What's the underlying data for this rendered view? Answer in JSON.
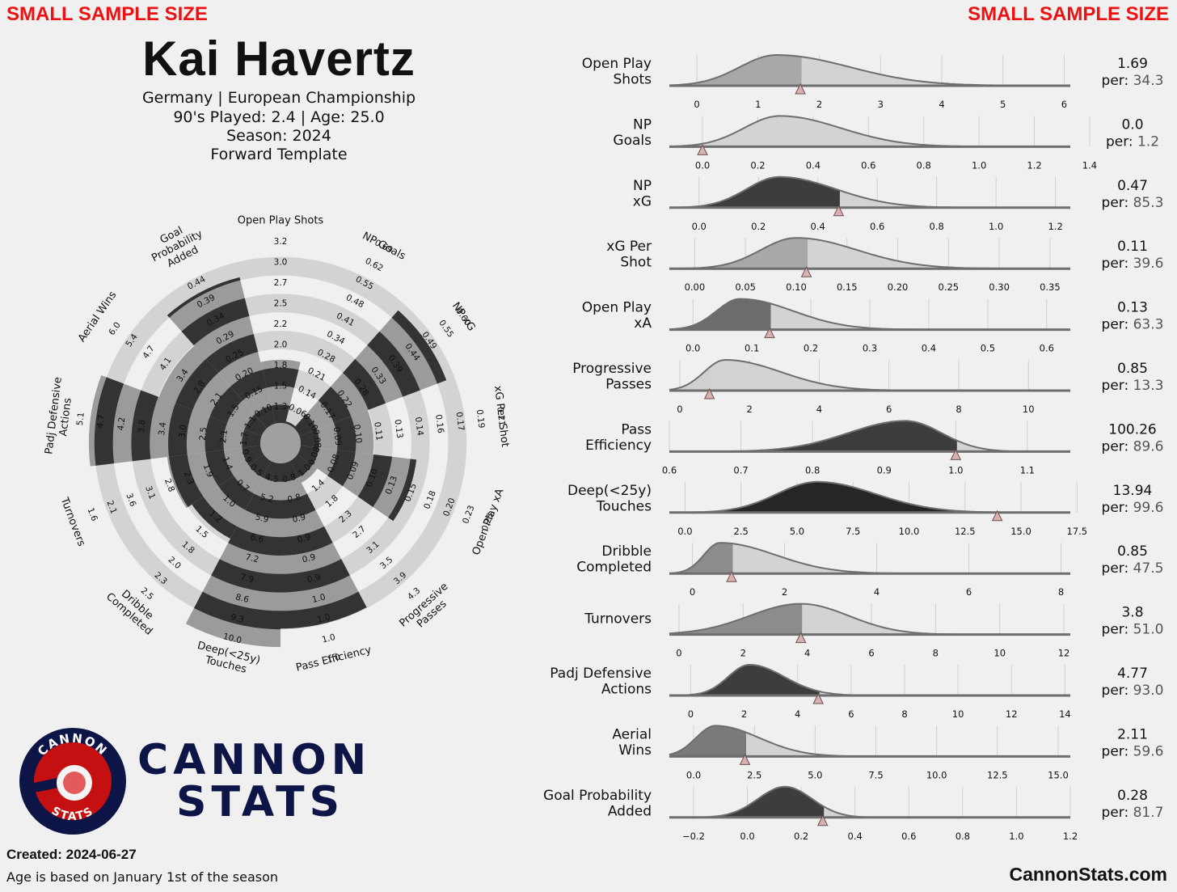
{
  "header": {
    "warning_left": "SMALL SAMPLE SIZE",
    "warning_right": "SMALL SAMPLE SIZE",
    "player_name": "Kai Havertz",
    "line1": "Germany | European Championship",
    "line2": "90's Played: 2.4 | Age: 25.0",
    "line3": "Season: 2024",
    "line4": "Forward Template"
  },
  "footer": {
    "brand_line1": "CANNON",
    "brand_line2": "STATS",
    "logo_top": "CANNON",
    "logo_bottom": "STATS",
    "created": "Created: 2024-06-27",
    "age_note": "Age is based on January 1st of the season",
    "website": "CannonStats.com"
  },
  "colors": {
    "background": "#f0f0f0",
    "warning": "#ee1111",
    "brand": "#0d1446",
    "ring": "#d3d3d3",
    "radar_dark": "#333333",
    "radar_light": "#9b9b9b",
    "marker": "#d9b0b0"
  },
  "chart_data": [
    {
      "type": "radar",
      "title": "",
      "categories": [
        "Open Play Shots",
        "NP Goals",
        "NP xG",
        "xG Per Shot",
        "Open Play xA",
        "Progressive Passes",
        "Pass Efficiency",
        "Deep(<25y) Touches",
        "Dribble Completed",
        "Turnovers",
        "Padj Defensive Actions",
        "Aerial Wins",
        "Goal Probability Added"
      ],
      "axis_labels": [
        "Open Play Shots",
        "NP Goals",
        "NP xG",
        "xG Per Shot",
        "Open Play xA",
        "Progressive\nPasses",
        "Pass Efficiency",
        "Deep(<25y)\nTouches",
        "Dribble\nCompleted",
        "Turnovers",
        "Padj Defensive\nActions",
        "Aerial Wins",
        "Goal\nProbability\nAdded"
      ],
      "percentiles": [
        34.3,
        1.2,
        85.3,
        39.6,
        63.3,
        13.3,
        89.6,
        99.6,
        47.5,
        51.0,
        93.0,
        59.6,
        81.7
      ],
      "range": [
        0,
        100
      ],
      "tick_labels": [
        [
          "1.3",
          "1.5",
          "1.8",
          "2.0",
          "2.2",
          "2.5",
          "2.7",
          "3.0",
          "3.2"
        ],
        [
          "0.06",
          "0.14",
          "0.21",
          "0.28",
          "0.34",
          "0.41",
          "0.48",
          "0.55",
          "0.62",
          "0.69"
        ],
        [
          "0.10",
          "0.17",
          "0.22",
          "0.28",
          "0.33",
          "0.39",
          "0.44",
          "0.49",
          "0.55",
          "0.60"
        ],
        [
          "0.08",
          "0.09",
          "0.10",
          "0.11",
          "0.13",
          "0.14",
          "0.16",
          "0.17",
          "0.19",
          "0.21"
        ],
        [
          "0.08",
          "0.08",
          "0.09",
          "0.10",
          "0.13",
          "0.15",
          "0.18",
          "0.20",
          "0.23",
          "0.25"
        ],
        [
          "1.0",
          "1.4",
          "1.8",
          "2.3",
          "2.7",
          "3.1",
          "3.5",
          "3.9",
          "4.3"
        ],
        [
          "0.8",
          "0.8",
          "0.9",
          "0.9",
          "0.9",
          "0.9",
          "1.0",
          "1.0",
          "1.0",
          "1.0"
        ],
        [
          "4.5",
          "5.2",
          "5.9",
          "6.6",
          "7.2",
          "7.9",
          "8.6",
          "9.3",
          "10.0"
        ],
        [
          "0.5",
          "0.7",
          "1.0",
          "1.2",
          "1.5",
          "1.8",
          "2.0",
          "2.3",
          "2.5"
        ],
        [
          "0.9",
          "1.4",
          "1.9",
          "2.3",
          "2.8",
          "3.1",
          "3.6",
          "2.1",
          "1.6"
        ],
        [
          "1.7",
          "2.1",
          "2.5",
          "3.0",
          "3.4",
          "3.8",
          "4.2",
          "4.7",
          "5.1"
        ],
        [
          "1.1",
          "1.5",
          "2.1",
          "2.8",
          "3.4",
          "4.1",
          "4.7",
          "5.4",
          "6.0"
        ],
        [
          "0.10",
          "0.15",
          "0.20",
          "0.25",
          "0.29",
          "0.34",
          "0.39",
          "0.44"
        ]
      ]
    },
    {
      "type": "area",
      "title": "",
      "grid": true,
      "rows": [
        {
          "label": "Open Play\nShots",
          "value": "1.69",
          "percentile": "34.3",
          "x": 1.69,
          "xlim": [
            -0.45,
            6.1
          ],
          "ticks": [
            0,
            1,
            2,
            3,
            4,
            5,
            6
          ],
          "tick_labels": [
            "0",
            "1",
            "2",
            "3",
            "4",
            "5",
            "6"
          ],
          "peak": 1.3,
          "sd_left": 0.6,
          "sd_right": 1.2,
          "density_height": 0.95,
          "shade": "#a8a8a8"
        },
        {
          "label": "NP\nGoals",
          "value": "0.0",
          "percentile": "1.2",
          "x": 0.0,
          "xlim": [
            -0.12,
            1.33
          ],
          "ticks": [
            0.0,
            0.2,
            0.4,
            0.6,
            0.8,
            1.0,
            1.2,
            1.4
          ],
          "tick_labels": [
            "0.0",
            "0.2",
            "0.4",
            "0.6",
            "0.8",
            "1.0",
            "1.2",
            "1.4"
          ],
          "peak": 0.28,
          "sd_left": 0.13,
          "sd_right": 0.22,
          "density_height": 0.95,
          "shade": "#d0d0d0"
        },
        {
          "label": "NP\nxG",
          "value": "0.47",
          "percentile": "85.3",
          "x": 0.47,
          "xlim": [
            -0.1,
            1.25
          ],
          "ticks": [
            0.0,
            0.2,
            0.4,
            0.6,
            0.8,
            1.0,
            1.2
          ],
          "tick_labels": [
            "0.0",
            "0.2",
            "0.4",
            "0.6",
            "0.8",
            "1.0",
            "1.2"
          ],
          "peak": 0.27,
          "sd_left": 0.11,
          "sd_right": 0.19,
          "density_height": 0.95,
          "shade": "#3d3d3d"
        },
        {
          "label": "xG Per\nShot",
          "value": "0.11",
          "percentile": "39.6",
          "x": 0.11,
          "xlim": [
            -0.025,
            0.37
          ],
          "ticks": [
            0.0,
            0.05,
            0.1,
            0.15,
            0.2,
            0.25,
            0.3,
            0.35
          ],
          "tick_labels": [
            "0.00",
            "0.05",
            "0.10",
            "0.15",
            "0.20",
            "0.25",
            "0.30",
            "0.35"
          ],
          "peak": 0.1,
          "sd_left": 0.035,
          "sd_right": 0.06,
          "density_height": 0.95,
          "shade": "#a8a8a8"
        },
        {
          "label": "Open Play\nxA",
          "value": "0.13",
          "percentile": "63.3",
          "x": 0.13,
          "xlim": [
            -0.04,
            0.64
          ],
          "ticks": [
            0.0,
            0.1,
            0.2,
            0.3,
            0.4,
            0.5,
            0.6
          ],
          "tick_labels": [
            "0.0",
            "0.1",
            "0.2",
            "0.3",
            "0.4",
            "0.5",
            "0.6"
          ],
          "peak": 0.08,
          "sd_left": 0.04,
          "sd_right": 0.09,
          "density_height": 0.95,
          "shade": "#6c6c6c"
        },
        {
          "label": "Progressive\nPasses",
          "value": "0.85",
          "percentile": "13.3",
          "x": 0.85,
          "xlim": [
            -0.3,
            11.2
          ],
          "ticks": [
            0,
            2,
            4,
            6,
            8,
            10
          ],
          "tick_labels": [
            "0",
            "2",
            "4",
            "6",
            "8",
            "10"
          ],
          "peak": 1.3,
          "sd_left": 0.6,
          "sd_right": 1.6,
          "density_height": 0.95,
          "shade": "#d0d0d0"
        },
        {
          "label": "Pass\nEfficiency",
          "value": "100.26",
          "percentile": "89.6",
          "x": 1.0,
          "xlim": [
            0.6,
            1.16
          ],
          "ticks": [
            0.6,
            0.7,
            0.8,
            0.9,
            1.0,
            1.1
          ],
          "tick_labels": [
            "0.6",
            "0.7",
            "0.8",
            "0.9",
            "1.0",
            "1.1"
          ],
          "peak": 0.93,
          "sd_left": 0.08,
          "sd_right": 0.05,
          "density_height": 0.95,
          "shade": "#3d3d3d"
        },
        {
          "label": "Deep(<25y)\nTouches",
          "value": "13.94",
          "percentile": "99.6",
          "x": 13.94,
          "xlim": [
            -0.7,
            17.2
          ],
          "ticks": [
            0.0,
            2.5,
            5.0,
            7.5,
            10.0,
            12.5,
            15.0,
            17.5
          ],
          "tick_labels": [
            "0.0",
            "2.5",
            "5.0",
            "7.5",
            "10.0",
            "12.5",
            "15.0",
            "17.5"
          ],
          "peak": 5.9,
          "sd_left": 1.8,
          "sd_right": 2.6,
          "density_height": 0.95,
          "shade": "#262626"
        },
        {
          "label": "Dribble\nCompleted",
          "value": "0.85",
          "percentile": "47.5",
          "x": 0.85,
          "xlim": [
            -0.5,
            8.2
          ],
          "ticks": [
            0,
            2,
            4,
            6,
            8
          ],
          "tick_labels": [
            "0",
            "2",
            "4",
            "6",
            "8"
          ],
          "peak": 0.6,
          "sd_left": 0.35,
          "sd_right": 1.2,
          "density_height": 0.95,
          "shade": "#8c8c8c"
        },
        {
          "label": "Turnovers",
          "value": "3.8",
          "percentile": "51.0",
          "x": 3.8,
          "xlim": [
            -0.3,
            12.2
          ],
          "ticks": [
            0,
            2,
            4,
            6,
            8,
            10,
            12
          ],
          "tick_labels": [
            "0",
            "2",
            "4",
            "6",
            "8",
            "10",
            "12"
          ],
          "peak": 3.8,
          "sd_left": 1.6,
          "sd_right": 1.5,
          "density_height": 0.95,
          "shade": "#8c8c8c"
        },
        {
          "label": "Padj Defensive\nActions",
          "value": "4.77",
          "percentile": "93.0",
          "x": 4.77,
          "xlim": [
            -0.8,
            14.2
          ],
          "ticks": [
            0,
            2,
            4,
            6,
            8,
            10,
            12,
            14
          ],
          "tick_labels": [
            "0",
            "2",
            "4",
            "6",
            "8",
            "10",
            "12",
            "14"
          ],
          "peak": 2.2,
          "sd_left": 0.8,
          "sd_right": 1.3,
          "density_height": 0.95,
          "shade": "#3d3d3d"
        },
        {
          "label": "Aerial\nWins",
          "value": "2.11",
          "percentile": "59.6",
          "x": 2.11,
          "xlim": [
            -1.0,
            15.5
          ],
          "ticks": [
            0.0,
            2.5,
            5.0,
            7.5,
            10.0,
            12.5,
            15.0
          ],
          "tick_labels": [
            "0.0",
            "2.5",
            "5.0",
            "7.5",
            "10.0",
            "12.5",
            "15.0"
          ],
          "peak": 0.9,
          "sd_left": 0.8,
          "sd_right": 1.8,
          "density_height": 0.95,
          "shade": "#7a7a7a"
        },
        {
          "label": "Goal Probability\nAdded",
          "value": "0.28",
          "percentile": "81.7",
          "x": 0.28,
          "xlim": [
            -0.29,
            1.2
          ],
          "ticks": [
            -0.2,
            0.0,
            0.2,
            0.4,
            0.6,
            0.8,
            1.0,
            1.2
          ],
          "tick_labels": [
            "−0.2",
            "0.0",
            "0.2",
            "0.4",
            "0.6",
            "0.8",
            "1.0",
            "1.2"
          ],
          "peak": 0.14,
          "sd_left": 0.1,
          "sd_right": 0.1,
          "density_height": 0.95,
          "shade": "#3d3d3d"
        }
      ],
      "per_label": "per:"
    }
  ]
}
